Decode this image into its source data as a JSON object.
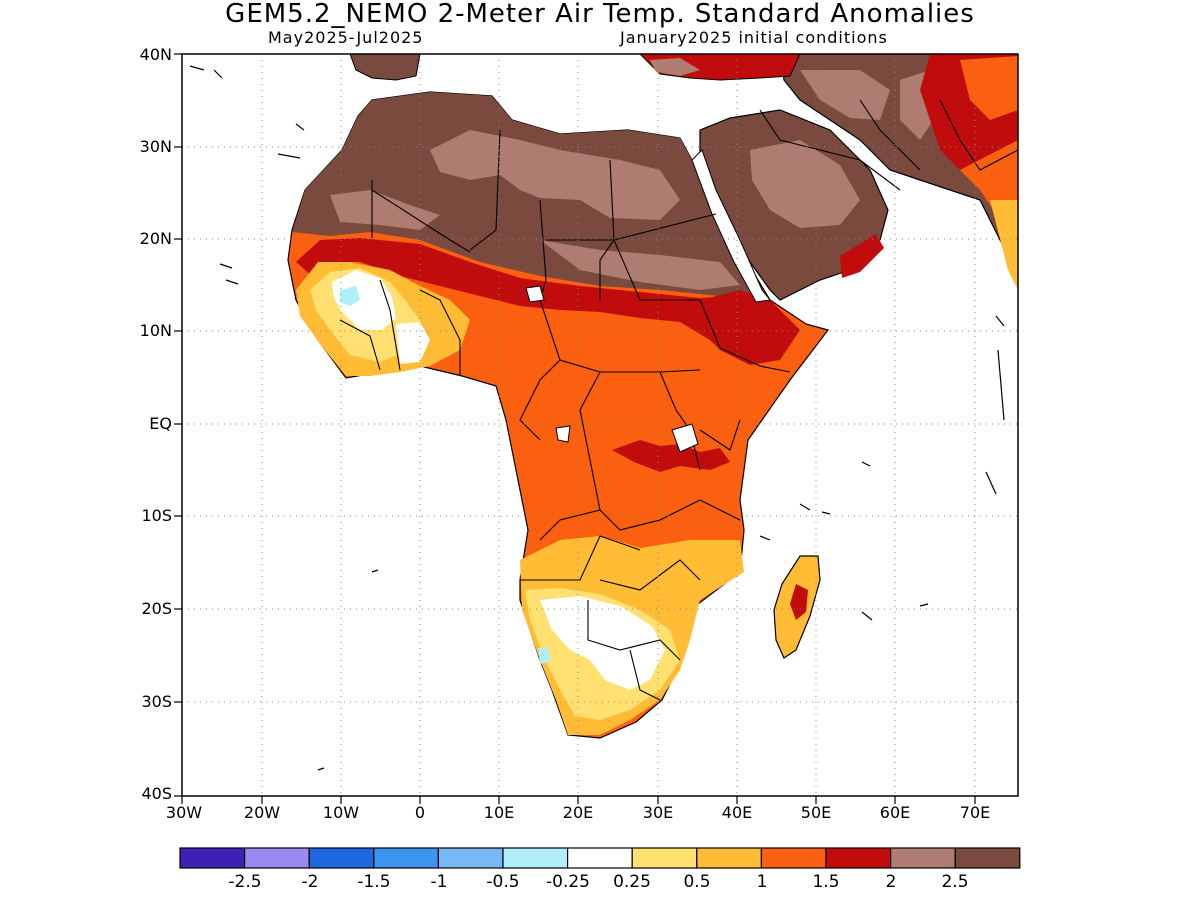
{
  "header": {
    "title": "GEM5.2_NEMO 2-Meter Air Temp. Standard Anomalies",
    "period": "May2025-Jul2025",
    "init": "January2025 initial conditions"
  },
  "axes": {
    "lat_labels": [
      "40N",
      "30N",
      "20N",
      "10N",
      "EQ",
      "10S",
      "20S",
      "30S",
      "40S"
    ],
    "lon_labels": [
      "30W",
      "20W",
      "10W",
      "0",
      "10E",
      "20E",
      "30E",
      "40E",
      "50E",
      "60E",
      "70E"
    ],
    "lat_range": [
      -40,
      40
    ],
    "lon_range": [
      -30,
      75
    ],
    "grid": "dotted"
  },
  "colorbar": {
    "colors": [
      "#3e20b4",
      "#9a8af0",
      "#2068e0",
      "#3d94f0",
      "#78b8f6",
      "#b0eefa",
      "#ffffff",
      "#ffe070",
      "#ffbc34",
      "#fa6010",
      "#c00c0c",
      "#ae7c70",
      "#7a4a3e"
    ],
    "labels": [
      "-2.5",
      "-2",
      "-1.5",
      "-1",
      "-0.5",
      "-0.25",
      "0.25",
      "0.5",
      "1",
      "1.5",
      "2",
      "2.5"
    ]
  },
  "legend": {
    "below_neg_2_5": "deep-blue",
    "above_2_5": "dark-brown"
  }
}
